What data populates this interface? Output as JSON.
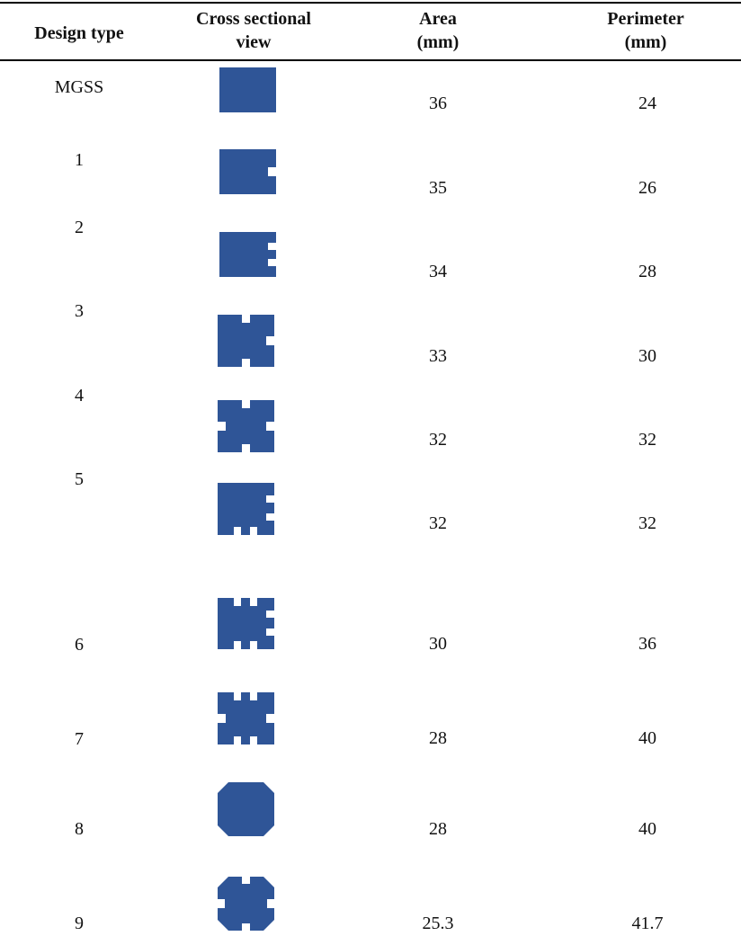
{
  "table": {
    "header": [
      "Design type",
      "Cross sectional view",
      "Area (mm)",
      "Perimeter (mm)"
    ],
    "rows": [
      [
        "MGSS",
        36,
        24
      ],
      [
        "1",
        35,
        26
      ],
      [
        "2",
        34,
        28
      ],
      [
        "3",
        33,
        30
      ],
      [
        "4",
        32,
        32
      ],
      [
        "5",
        32,
        32
      ],
      [
        "6",
        30,
        36
      ],
      [
        "7",
        28,
        40
      ],
      [
        "8",
        28,
        40
      ],
      [
        "9",
        25.3,
        41.7
      ]
    ]
  }
}
